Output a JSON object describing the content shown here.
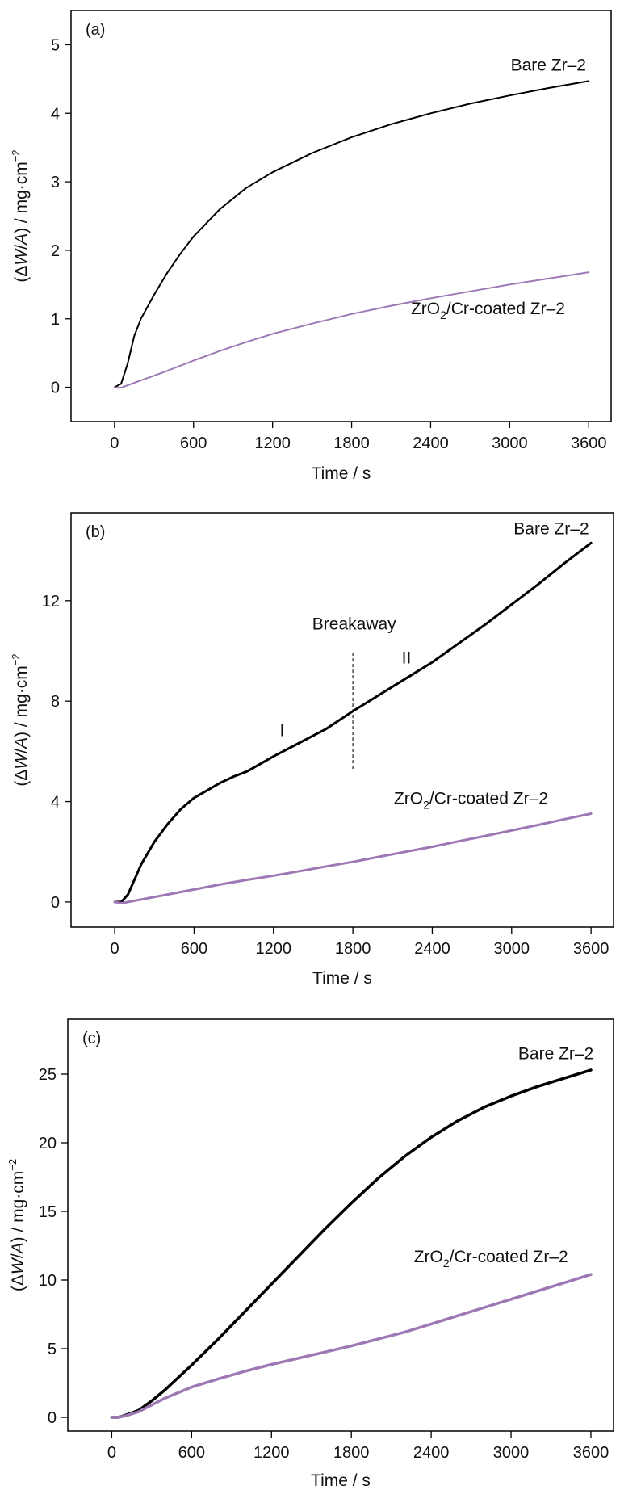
{
  "chart_data": [
    {
      "type": "line",
      "panel_label": "(a)",
      "xlabel": "Time / s",
      "ylabel": {
        "open": "(Δ",
        "italic_w": "W",
        "slash": "/",
        "italic_a": "A",
        "rest": ") / mg·cm",
        "exp": "−2"
      },
      "xlim": [
        -330,
        3770
      ],
      "ylim": [
        -0.5,
        5.5
      ],
      "xticks": [
        0,
        600,
        1200,
        1800,
        2400,
        3000,
        3600
      ],
      "yticks": [
        0,
        1,
        2,
        3,
        4,
        5
      ],
      "series": [
        {
          "name": "Bare Zr–2",
          "color": "#000000",
          "x": [
            0,
            50,
            100,
            150,
            200,
            300,
            400,
            500,
            600,
            800,
            1000,
            1200,
            1500,
            1800,
            2100,
            2400,
            2700,
            3000,
            3300,
            3600
          ],
          "y": [
            0.0,
            0.05,
            0.35,
            0.75,
            1.0,
            1.35,
            1.67,
            1.95,
            2.2,
            2.6,
            2.91,
            3.14,
            3.42,
            3.65,
            3.84,
            4.0,
            4.14,
            4.26,
            4.37,
            4.47
          ]
        },
        {
          "name": "ZrO2/Cr-coated Zr–2",
          "color": "#9d78b5",
          "x": [
            0,
            30,
            60,
            100,
            200,
            300,
            400,
            600,
            800,
            1000,
            1200,
            1500,
            1800,
            2100,
            2400,
            2700,
            3000,
            3300,
            3600
          ],
          "y": [
            0.0,
            -0.01,
            0.0,
            0.03,
            0.1,
            0.17,
            0.24,
            0.39,
            0.53,
            0.66,
            0.78,
            0.93,
            1.07,
            1.19,
            1.3,
            1.4,
            1.5,
            1.59,
            1.68
          ]
        }
      ],
      "annotations": [
        {
          "text": "Bare Zr–2",
          "x": 3580,
          "y": 4.62,
          "anchor": "end"
        },
        {
          "base": "ZrO",
          "sub": "2",
          "rest": "/Cr-coated Zr–2",
          "x": 2250,
          "y": 1.07,
          "anchor": "start"
        }
      ]
    },
    {
      "type": "line",
      "panel_label": "(b)",
      "xlabel": "Time / s",
      "ylabel": {
        "open": "(Δ",
        "italic_w": "W",
        "slash": "/",
        "italic_a": "A",
        "rest": ") / mg·cm",
        "exp": "−2"
      },
      "xlim": [
        -330,
        3770
      ],
      "ylim": [
        -1,
        15.5
      ],
      "xticks": [
        0,
        600,
        1200,
        1800,
        2400,
        3000,
        3600
      ],
      "yticks": [
        0,
        4,
        8,
        12
      ],
      "series": [
        {
          "name": "Bare Zr–2",
          "color": "#000000",
          "x": [
            0,
            50,
            100,
            200,
            300,
            400,
            500,
            600,
            700,
            800,
            900,
            1000,
            1100,
            1200,
            1400,
            1600,
            1800,
            2000,
            2200,
            2400,
            2600,
            2800,
            3000,
            3200,
            3400,
            3600
          ],
          "y": [
            0.0,
            0.0,
            0.3,
            1.5,
            2.4,
            3.1,
            3.7,
            4.15,
            4.45,
            4.75,
            5.0,
            5.2,
            5.5,
            5.8,
            6.35,
            6.9,
            7.6,
            8.25,
            8.9,
            9.55,
            10.3,
            11.05,
            11.85,
            12.65,
            13.5,
            14.3
          ]
        },
        {
          "name": "ZrO2/Cr-coated Zr–2",
          "color": "#9d78b5",
          "x": [
            0,
            50,
            100,
            200,
            400,
            600,
            800,
            1000,
            1200,
            1400,
            1600,
            1800,
            2000,
            2200,
            2400,
            2600,
            2800,
            3000,
            3200,
            3400,
            3600
          ],
          "y": [
            0.0,
            -0.05,
            0.0,
            0.1,
            0.3,
            0.5,
            0.7,
            0.88,
            1.05,
            1.23,
            1.42,
            1.6,
            1.8,
            2.0,
            2.2,
            2.42,
            2.63,
            2.85,
            3.07,
            3.3,
            3.52
          ]
        }
      ],
      "reference_line": {
        "x": 1800,
        "y_from": 5.3,
        "y_to": 10.0
      },
      "annotations": [
        {
          "text": "Bare Zr–2",
          "x": 3300,
          "y": 14.65,
          "anchor": "middle"
        },
        {
          "text": "Breakaway",
          "x": 1810,
          "y": 10.85,
          "anchor": "middle"
        },
        {
          "text": "I",
          "x": 1265,
          "y": 6.6,
          "anchor": "middle"
        },
        {
          "text": "II",
          "x": 2205,
          "y": 9.5,
          "anchor": "middle"
        },
        {
          "base": "ZrO",
          "sub": "2",
          "rest": "/Cr-coated Zr–2",
          "x": 2110,
          "y": 3.9,
          "anchor": "start"
        }
      ]
    },
    {
      "type": "line",
      "panel_label": "(c)",
      "xlabel": "Time / s",
      "ylabel": {
        "open": "(Δ",
        "italic_w": "W",
        "slash": "/",
        "italic_a": "A",
        "rest": ") / mg·cm",
        "exp": "−2"
      },
      "xlim": [
        -330,
        3770
      ],
      "ylim": [
        -1,
        29
      ],
      "xticks": [
        0,
        600,
        1200,
        1800,
        2400,
        3000,
        3600
      ],
      "yticks": [
        0,
        5,
        10,
        15,
        20,
        25
      ],
      "series": [
        {
          "name": "Bare Zr–2",
          "color": "#000000",
          "x": [
            0,
            50,
            100,
            200,
            300,
            400,
            600,
            800,
            1000,
            1200,
            1400,
            1600,
            1800,
            2000,
            2200,
            2400,
            2600,
            2800,
            3000,
            3200,
            3400,
            3600
          ],
          "y": [
            0.0,
            0.0,
            0.15,
            0.5,
            1.2,
            2.0,
            3.8,
            5.7,
            7.7,
            9.7,
            11.7,
            13.7,
            15.6,
            17.4,
            19.0,
            20.4,
            21.6,
            22.6,
            23.4,
            24.1,
            24.7,
            25.3
          ]
        },
        {
          "name": "ZrO2/Cr-coated Zr–2",
          "color": "#9d78b5",
          "x": [
            0,
            50,
            100,
            200,
            300,
            400,
            600,
            800,
            1000,
            1200,
            1400,
            1600,
            1800,
            2000,
            2200,
            2400,
            2600,
            2800,
            3000,
            3200,
            3400,
            3600
          ],
          "y": [
            0.0,
            0.0,
            0.1,
            0.4,
            0.9,
            1.4,
            2.2,
            2.8,
            3.35,
            3.85,
            4.3,
            4.75,
            5.2,
            5.7,
            6.2,
            6.8,
            7.4,
            8.0,
            8.6,
            9.2,
            9.8,
            10.4
          ]
        }
      ],
      "annotations": [
        {
          "text": "Bare Zr–2",
          "x": 3620,
          "y": 26.1,
          "anchor": "end"
        },
        {
          "base": "ZrO",
          "sub": "2",
          "rest": "/Cr-coated Zr–2",
          "x": 2270,
          "y": 11.3,
          "anchor": "start"
        }
      ]
    }
  ]
}
